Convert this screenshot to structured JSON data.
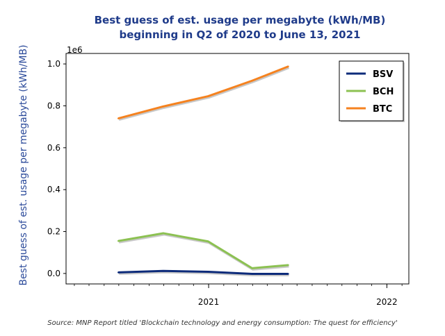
{
  "chart_data": {
    "type": "line",
    "title_lines": [
      "Best guess of est. usage per megabyte (kWh/MB)",
      "beginning in Q2 of 2020 to June 13, 2021"
    ],
    "xlabel": "",
    "ylabel": "Best guess of est. usage per megabyte (kWh/MB)",
    "y_offset_label": "1e6",
    "xlim": [
      "2020-03-15",
      "2022-02-15"
    ],
    "ylim": [
      -0.05,
      1.05
    ],
    "y_ticks": [
      0.0,
      0.2,
      0.4,
      0.6,
      0.8,
      1.0
    ],
    "y_tick_labels": [
      "0.0",
      "0.2",
      "0.4",
      "0.6",
      "0.8",
      "1.0"
    ],
    "x_ticks": [
      "2021-01-01",
      "2022-01-01"
    ],
    "x_tick_labels": [
      "2021",
      "2022"
    ],
    "x": [
      "2020-06-30",
      "2020-09-30",
      "2020-12-31",
      "2021-03-31",
      "2021-06-13"
    ],
    "series": [
      {
        "name": "BSV",
        "color": "#0d2b7a",
        "values": [
          0.005,
          0.012,
          0.008,
          -0.002,
          -0.002
        ]
      },
      {
        "name": "BCH",
        "color": "#8cc152",
        "values": [
          0.155,
          0.192,
          0.153,
          0.025,
          0.04
        ]
      },
      {
        "name": "BTC",
        "color": "#f5821f",
        "values": [
          0.74,
          0.797,
          0.846,
          0.92,
          0.988
        ]
      }
    ],
    "legend_position": "top-right",
    "grid": false,
    "source_note": "Source: MNP Report titled 'Blockchain technology and energy consumption: The quest for efficiency'"
  }
}
